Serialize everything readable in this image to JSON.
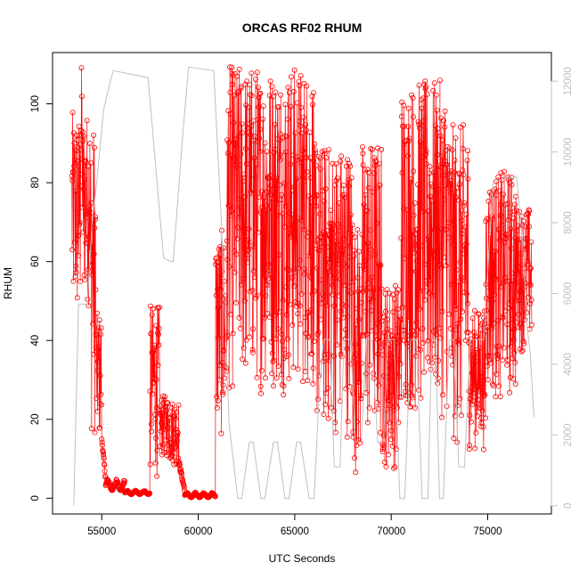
{
  "chart_data": {
    "type": "scatter",
    "title": "ORCAS RF02 RHUM",
    "xlabel": "UTC Seconds",
    "ylabel": "RHUM",
    "xlim": [
      52450,
      78300
    ],
    "ylim": [
      -4,
      113
    ],
    "xticks": [
      55000,
      60000,
      65000,
      70000,
      75000
    ],
    "yticks": [
      0,
      20,
      40,
      60,
      80,
      100
    ],
    "y2lim": [
      -233,
      12810
    ],
    "y2ticks": [
      0,
      2000,
      4000,
      6000,
      8000,
      10000,
      12000
    ],
    "colors": {
      "rhum": "#ff0000",
      "altitude": "#c0c0c0",
      "axis": "#000000"
    },
    "grid": false,
    "series": [
      {
        "marker": "open-circle",
        "color": "#ff0000",
        "segments": [
          {
            "x0": 53450,
            "x1": 53900,
            "min": 41,
            "max": 98,
            "shape": "noisy"
          },
          {
            "x0": 53900,
            "x1": 54000,
            "min": 70,
            "max": 110,
            "shape": "noisy"
          },
          {
            "x0": 54000,
            "x1": 54400,
            "min": 48,
            "max": 98,
            "shape": "noisy"
          },
          {
            "x0": 54400,
            "x1": 54700,
            "min": 14,
            "max": 95,
            "shape": "noisy"
          },
          {
            "x0": 54700,
            "x1": 55000,
            "min": 13,
            "max": 47,
            "shape": "noisy"
          },
          {
            "x0": 55000,
            "x1": 55200,
            "min": 5,
            "max": 15,
            "shape": "decay"
          },
          {
            "x0": 55200,
            "x1": 56200,
            "min": 2,
            "max": 5,
            "shape": "flat"
          },
          {
            "x0": 56200,
            "x1": 57500,
            "min": 1,
            "max": 2,
            "shape": "flat"
          },
          {
            "x0": 57500,
            "x1": 58000,
            "min": 5,
            "max": 49,
            "shape": "noisy"
          },
          {
            "x0": 58000,
            "x1": 58500,
            "min": 10,
            "max": 26,
            "shape": "noisy"
          },
          {
            "x0": 58500,
            "x1": 59000,
            "min": 8,
            "max": 25,
            "shape": "noisy"
          },
          {
            "x0": 59000,
            "x1": 59300,
            "min": 2,
            "max": 9,
            "shape": "decay"
          },
          {
            "x0": 59300,
            "x1": 60900,
            "min": 0.2,
            "max": 1.5,
            "shape": "flat"
          },
          {
            "x0": 60900,
            "x1": 61500,
            "min": 14,
            "max": 68,
            "shape": "noisy"
          },
          {
            "x0": 61500,
            "x1": 66000,
            "min": 26,
            "max": 110,
            "shape": "noisy"
          },
          {
            "x0": 66000,
            "x1": 68000,
            "min": 15,
            "max": 90,
            "shape": "noisy"
          },
          {
            "x0": 68000,
            "x1": 68500,
            "min": 6,
            "max": 70,
            "shape": "noisy"
          },
          {
            "x0": 68500,
            "x1": 69500,
            "min": 12,
            "max": 91,
            "shape": "noisy"
          },
          {
            "x0": 69500,
            "x1": 70500,
            "min": 7,
            "max": 55,
            "shape": "noisy"
          },
          {
            "x0": 70500,
            "x1": 73000,
            "min": 20,
            "max": 106,
            "shape": "noisy"
          },
          {
            "x0": 73000,
            "x1": 74000,
            "min": 11,
            "max": 95,
            "shape": "noisy"
          },
          {
            "x0": 74000,
            "x1": 74900,
            "min": 12,
            "max": 48,
            "shape": "noisy"
          },
          {
            "x0": 74900,
            "x1": 76500,
            "min": 24,
            "max": 83,
            "shape": "noisy"
          },
          {
            "x0": 76500,
            "x1": 77300,
            "min": 37,
            "max": 74,
            "shape": "noisy"
          }
        ]
      },
      {
        "axis": "right",
        "color": "#c0c0c0",
        "x": [
          53550,
          53800,
          54250,
          54500,
          54750,
          55100,
          55400,
          55600,
          57400,
          58200,
          58600,
          58700,
          59200,
          59500,
          60800,
          61200,
          61600,
          62050,
          62250,
          62650,
          62850,
          63250,
          63450,
          63900,
          64100,
          64500,
          64700,
          65100,
          65300,
          65750,
          66000,
          66300,
          66500,
          66800,
          67050,
          67350,
          67550,
          67900,
          68150,
          68450,
          68700,
          69000,
          69300,
          69600,
          69800,
          70150,
          70450,
          70700,
          71000,
          71300,
          71600,
          71900,
          72100,
          72300,
          72500,
          72700,
          73000,
          73250,
          73500,
          73800,
          74100,
          74500,
          74800,
          75100,
          75300,
          75600,
          76500,
          76800,
          77000,
          77200,
          77400
        ],
        "values": [
          0,
          5700,
          5700,
          8000,
          9200,
          11200,
          11900,
          12300,
          12100,
          7000,
          6900,
          6900,
          10500,
          12400,
          12300,
          8000,
          2300,
          200,
          200,
          1800,
          1800,
          200,
          200,
          1800,
          1800,
          200,
          200,
          1800,
          1800,
          200,
          200,
          3500,
          4700,
          4700,
          1100,
          1100,
          4700,
          4700,
          1800,
          1800,
          4700,
          4700,
          1800,
          1800,
          4700,
          4700,
          200,
          200,
          4700,
          4700,
          200,
          200,
          4700,
          4700,
          200,
          200,
          4700,
          4700,
          1100,
          1100,
          4700,
          4700,
          4700,
          7600,
          9200,
          9200,
          9300,
          7500,
          5300,
          4300,
          2500
        ]
      }
    ]
  }
}
